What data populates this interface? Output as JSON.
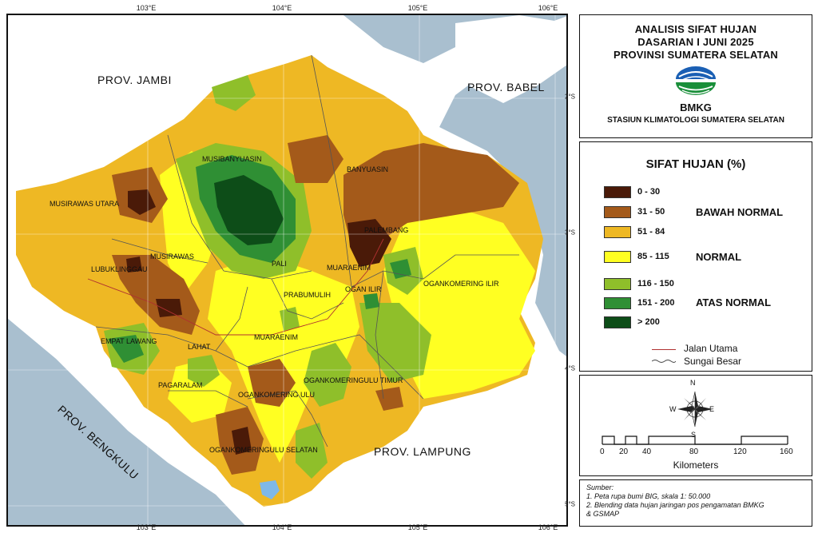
{
  "map": {
    "lon_ticks": [
      "103°E",
      "104°E",
      "105°E",
      "106°E"
    ],
    "lat_ticks": [
      "2°S",
      "3°S",
      "4°S",
      "5°S"
    ],
    "provinces": {
      "jambi": "PROV. JAMBI",
      "babel": "PROV. BABEL",
      "bengkulu": "PROV. BENGKULU",
      "lampung": "PROV. LAMPUNG"
    },
    "regions": {
      "musirawas_utara": "MUSIRAWAS UTARA",
      "musibanyuasin": "MUSIBANYUASIN",
      "banyuasin": "BANYUASIN",
      "palembang": "PALEMBANG",
      "musirawas": "MUSIRAWAS",
      "lubuklinggau": "LUBUKLINGGAU",
      "pali": "PALI",
      "muaraenim_north": "MUARAENIM",
      "ogan_ilir": "OGAN ILIR",
      "ogankomering_ilir": "OGANKOMERING ILIR",
      "prabumulih": "PRABUMULIH",
      "empat_lawang": "EMPAT LAWANG",
      "lahat": "LAHAT",
      "muaraenim": "MUARAENIM",
      "pagaralam": "PAGARALAM",
      "ogankomeringulu_timur": "OGANKOMERINGULU TIMUR",
      "ogankomering_ulu": "OGANKOMERING ULU",
      "ogankomeringulu_selatan": "OGANKOMERINGULU SELATAN"
    }
  },
  "title": {
    "line1": "ANALISIS SIFAT HUJAN",
    "line2": "DASARIAN I JUNI 2025",
    "line3": "PROVINSI SUMATERA SELATAN",
    "agency": "BMKG",
    "station": "STASIUN KLIMATOLOGI SUMATERA SELATAN"
  },
  "legend": {
    "title": "SIFAT HUJAN (%)",
    "classes": [
      {
        "label": "0 - 30",
        "color": "#4a1a08"
      },
      {
        "label": "31 - 50",
        "color": "#a45a1a"
      },
      {
        "label": "51 - 84",
        "color": "#eeb824"
      },
      {
        "label": "85 - 115",
        "color": "#ffff22"
      },
      {
        "label": "116 - 150",
        "color": "#8fbf2a"
      },
      {
        "label": "151 - 200",
        "color": "#2f8f34"
      },
      {
        "label": "> 200",
        "color": "#0d4d18"
      }
    ],
    "categories": {
      "below": "BAWAH NORMAL",
      "normal": "NORMAL",
      "above": "ATAS NORMAL"
    },
    "lines": {
      "road": "Jalan Utama",
      "river": "Sungai Besar"
    }
  },
  "scale": {
    "ticks": [
      "0",
      "20",
      "40",
      "80",
      "120",
      "160"
    ],
    "unit": "Kilometers",
    "compass": {
      "n": "N",
      "s": "S",
      "e": "E",
      "w": "W"
    }
  },
  "source": {
    "heading": "Sumber:",
    "line1": "1. Peta rupa bumi BIG, skala 1: 50.000",
    "line2": "2. Blending data hujan jaringan pos pengamatan BMKG",
    "line3": "& GSMAP"
  }
}
